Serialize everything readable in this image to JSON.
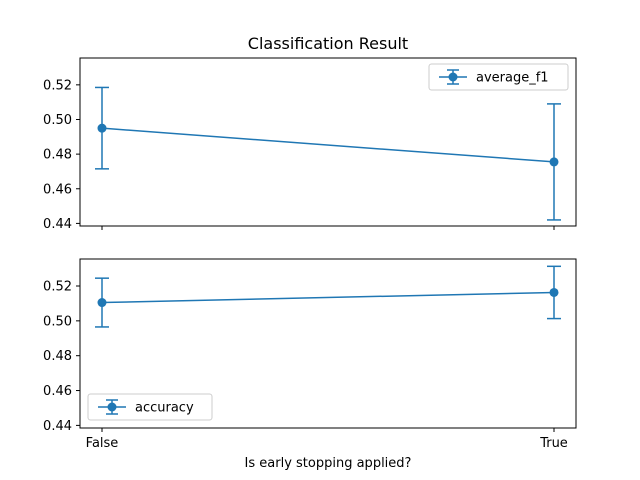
{
  "title": "Classification Result",
  "xlabel": "Is early stopping applied?",
  "colors": {
    "series": "#1f77b4",
    "axes": "#000000",
    "legend_border": "#cccccc"
  },
  "chart_data": [
    {
      "type": "line",
      "title": "Classification Result",
      "categories": [
        "False",
        "True"
      ],
      "series": [
        {
          "name": "average_f1",
          "values": [
            0.495,
            0.4755
          ],
          "error": [
            0.0235,
            0.0335
          ]
        }
      ],
      "ylim": [
        0.4385,
        0.5355
      ],
      "yticks": [
        0.44,
        0.46,
        0.48,
        0.5,
        0.52
      ],
      "ytick_labels": [
        "0.44",
        "0.46",
        "0.48",
        "0.50",
        "0.52"
      ],
      "show_xtick_labels": false,
      "legend": "top-right",
      "grid": false
    },
    {
      "type": "line",
      "categories": [
        "False",
        "True"
      ],
      "series": [
        {
          "name": "accuracy",
          "values": [
            0.5105,
            0.5163
          ],
          "error": [
            0.014,
            0.015
          ]
        }
      ],
      "ylim": [
        0.4385,
        0.5355
      ],
      "yticks": [
        0.44,
        0.46,
        0.48,
        0.5,
        0.52
      ],
      "ytick_labels": [
        "0.44",
        "0.46",
        "0.48",
        "0.50",
        "0.52"
      ],
      "xtick_labels": [
        "False",
        "True"
      ],
      "xlabel": "Is early stopping applied?",
      "legend": "bottom-left",
      "grid": false
    }
  ]
}
